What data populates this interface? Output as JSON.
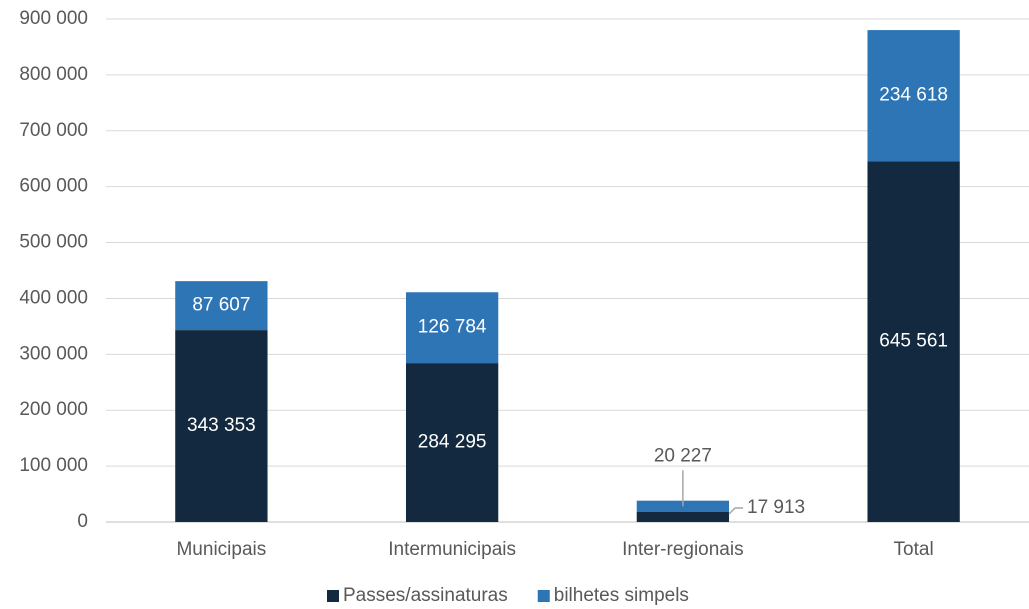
{
  "chart_data": {
    "type": "stacked_bar",
    "categories": [
      "Municipais",
      "Intermunicipais",
      "Inter-regionais",
      "Total"
    ],
    "series": [
      {
        "name": "Passes/assinaturas",
        "color": "#13293f",
        "values": [
          343353,
          284295,
          17913,
          645561
        ],
        "value_labels": [
          "343 353",
          "284 295",
          "17 913",
          "645 561"
        ]
      },
      {
        "name": "bilhetes simpels",
        "color": "#2e75b6",
        "values": [
          87607,
          126784,
          20227,
          234618
        ],
        "value_labels": [
          "87 607",
          "126 784",
          "20 227",
          "234 618"
        ]
      }
    ],
    "ylim": [
      0,
      900000
    ],
    "yticks": [
      {
        "value": 0,
        "label": "0"
      },
      {
        "value": 100000,
        "label": "100 000"
      },
      {
        "value": 200000,
        "label": "200 000"
      },
      {
        "value": 300000,
        "label": "300 000"
      },
      {
        "value": 400000,
        "label": "400 000"
      },
      {
        "value": 500000,
        "label": "500 000"
      },
      {
        "value": 600000,
        "label": "600 000"
      },
      {
        "value": 700000,
        "label": "700 000"
      },
      {
        "value": 800000,
        "label": "800 000"
      },
      {
        "value": 900000,
        "label": "900 000"
      }
    ],
    "grid": true,
    "legend": "bottom"
  }
}
